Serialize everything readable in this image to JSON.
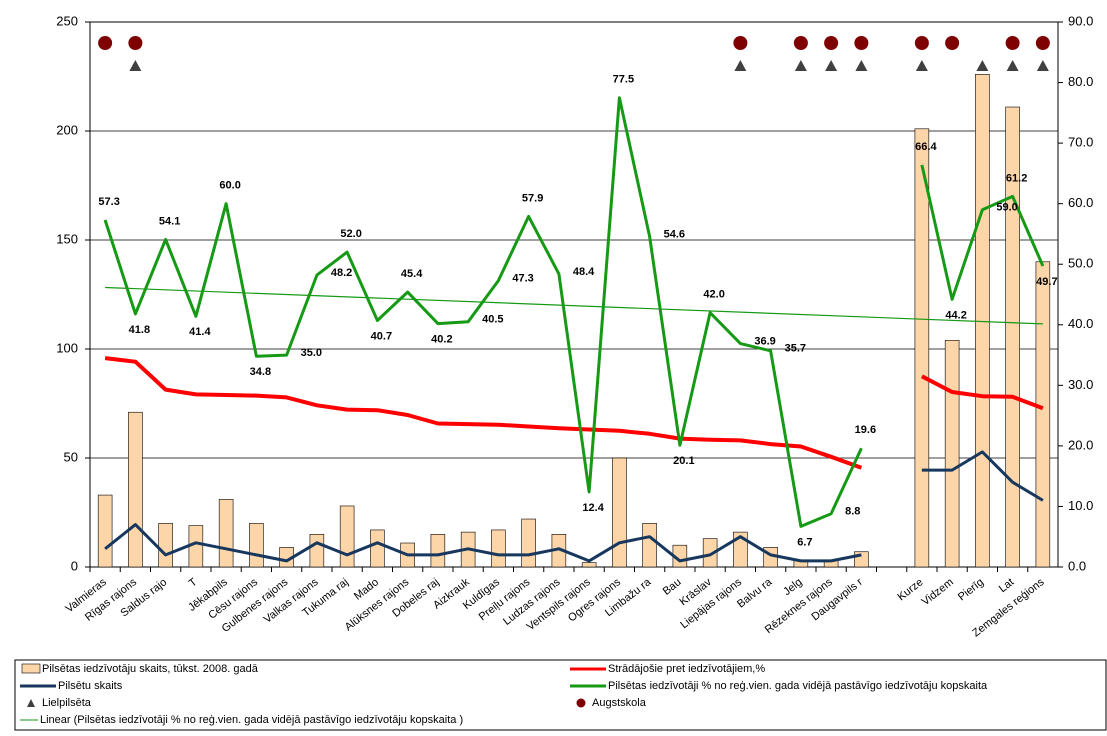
{
  "chart_data": {
    "type": "combo",
    "categories": [
      "Valmieras",
      "Rīgas rajons",
      "Saldus rajo",
      "T",
      "Jēkabpils",
      "Cēsu rajons",
      "Gulbenes rajons",
      "Valkas rajons",
      "Tukuma raj",
      "Mado",
      "Alūksnes rajons",
      "Dobeles raj",
      "Aizkrauk",
      "Kuldīgas",
      "Preiļu rajons",
      "Ludzas rajons",
      "Ventspils rajons",
      "Ogres rajons",
      "Limbažu ra",
      "Bau",
      "Krāslav",
      "Liepājas rajons",
      "Balvu ra",
      "Jelg",
      "Rēzeknes rajons",
      "Daugavpils r",
      null,
      "Kurze",
      "Vidzem",
      "Pierīg",
      "Lat",
      "Zemgales reģions"
    ],
    "ylim": [
      0,
      250
    ],
    "yticks": [
      0,
      50,
      100,
      150,
      200,
      250
    ],
    "y2lim": [
      0,
      90
    ],
    "y2ticks": [
      {
        "value": 0,
        "label": "0.0"
      },
      {
        "value": 10,
        "label": "10.0"
      },
      {
        "value": 20,
        "label": "20.0"
      },
      {
        "value": 30,
        "label": "30.0"
      },
      {
        "value": 40,
        "label": "40.0"
      },
      {
        "value": 50,
        "label": "50.0"
      },
      {
        "value": 60,
        "label": "60.0"
      },
      {
        "value": 70,
        "label": "70.0"
      },
      {
        "value": 80,
        "label": "80.0"
      },
      {
        "value": 90,
        "label": "90.0"
      }
    ],
    "grid": true,
    "series": [
      {
        "name": "Pilsētas iedzīvotāju skaits, tūkst. 2008. gadā",
        "type": "bar",
        "color": "#fcd5a8",
        "values": [
          33,
          71,
          20,
          19,
          31,
          20,
          9,
          15,
          28,
          17,
          11,
          15,
          16,
          17,
          22,
          15,
          2,
          50,
          20,
          10,
          13,
          16,
          9,
          3,
          3,
          7,
          null,
          201,
          104,
          226,
          211,
          140
        ]
      },
      {
        "name": "Strādājošie pret iedzīvotājiem,%",
        "type": "line",
        "axis": "y2",
        "color": "#ff0000",
        "values": [
          34.5,
          33.9,
          29.3,
          28.5,
          28.4,
          28.3,
          28.0,
          26.7,
          26.0,
          25.9,
          25.1,
          23.7,
          23.6,
          23.5,
          23.2,
          22.9,
          22.7,
          22.5,
          22.0,
          21.2,
          21.0,
          20.9,
          20.3,
          19.9,
          18.2,
          16.4,
          null,
          31.5,
          28.9,
          28.2,
          28.1,
          26.2
        ]
      },
      {
        "name": "Pilsētu skaits",
        "type": "line",
        "axis": "y2",
        "color": "#17375e",
        "values": [
          3,
          7,
          2,
          4,
          3,
          2,
          1,
          4,
          2,
          4,
          2,
          2,
          3,
          2,
          2,
          3,
          1,
          4,
          5,
          1,
          2,
          5,
          2,
          1,
          1,
          2,
          null,
          16,
          16,
          19,
          14,
          11
        ]
      },
      {
        "name": "Pilsētas iedzīvotāji % no reģ.vien. gada vidējā pastāvīgo iedzīvotāju kopskaita",
        "type": "line",
        "axis": "y2",
        "color": "#169a16",
        "values": [
          57.3,
          41.8,
          54.1,
          41.4,
          60,
          34.8,
          35,
          48.2,
          52,
          40.7,
          45.4,
          40.2,
          40.5,
          47.3,
          57.9,
          48.4,
          12.4,
          77.5,
          54.6,
          20.1,
          42,
          36.9,
          35.7,
          6.7,
          8.8,
          19.6,
          null,
          66.4,
          44.2,
          59,
          61.2,
          49.7
        ],
        "value_labels": [
          "57.3",
          "41.8",
          "54.1",
          "41.4",
          "60.0",
          "34.8",
          "35.0",
          "48.2",
          "52.0",
          "40.7",
          "45.4",
          "40.2",
          "40.5",
          "47.3",
          "57.9",
          "48.4",
          "12.4",
          "77.5",
          "54.6",
          "20.1",
          "42.0",
          "36.9",
          "35.7",
          "6.7",
          "8.8",
          "19.6",
          null,
          "66.4",
          "44.2",
          "59.0",
          "61.2",
          "49.7"
        ]
      },
      {
        "name": "Lielpilsēta",
        "type": "marker",
        "shape": "triangle",
        "color": "#404040",
        "values": [
          null,
          1,
          null,
          null,
          null,
          null,
          null,
          null,
          null,
          null,
          null,
          null,
          null,
          null,
          null,
          null,
          null,
          null,
          null,
          null,
          null,
          1,
          null,
          1,
          1,
          1,
          null,
          1,
          null,
          1,
          1,
          1
        ]
      },
      {
        "name": "Augstskola",
        "type": "marker",
        "shape": "circle",
        "color": "#7f0000",
        "values": [
          1,
          1,
          null,
          null,
          null,
          null,
          null,
          null,
          null,
          null,
          null,
          null,
          null,
          null,
          null,
          null,
          null,
          null,
          null,
          null,
          null,
          1,
          null,
          1,
          1,
          1,
          null,
          1,
          1,
          null,
          1,
          1
        ]
      }
    ],
    "trendline": {
      "name": "Linear (Pilsētas iedzīvotāji % no reģ.vien. gada vidējā pastāvīgo iedzīvotāju kopskaita )",
      "color": "#169a16"
    }
  }
}
